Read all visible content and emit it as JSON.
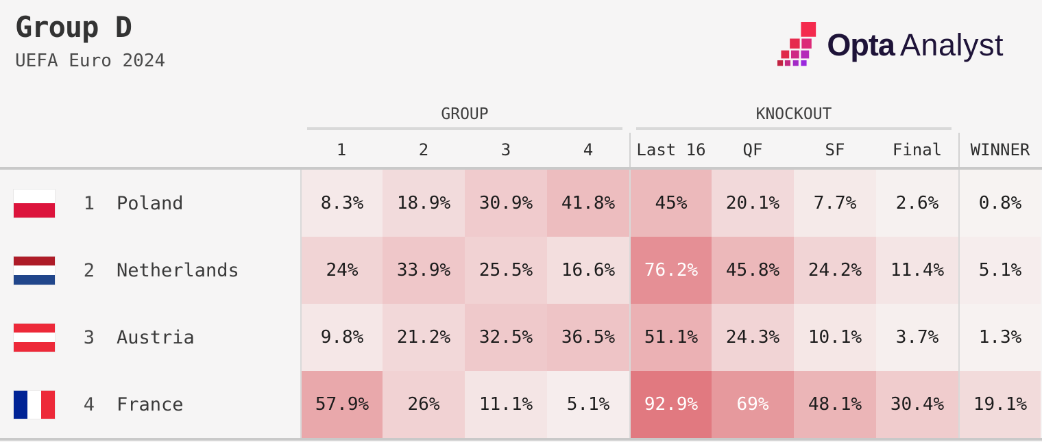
{
  "header": {
    "title": "Group D",
    "subtitle": "UEFA Euro 2024"
  },
  "logo": {
    "brand": "Opta",
    "product": "Analyst",
    "text_color": "#1e1338",
    "mark_colors": [
      "#f42a4d",
      "#e62a4e",
      "#dc2a78",
      "#e02a49",
      "#cf2a84",
      "#b42bb9",
      "#c22342",
      "#c42a80",
      "#a32ac6",
      "#9a28dd"
    ]
  },
  "chart_data": {
    "type": "heatmap",
    "title": "Group D",
    "subtitle": "UEFA Euro 2024",
    "column_sections": [
      {
        "label": "GROUP",
        "columns": [
          "1",
          "2",
          "3",
          "4"
        ]
      },
      {
        "label": "KNOCKOUT",
        "columns": [
          "Last 16",
          "QF",
          "SF",
          "Final"
        ]
      },
      {
        "label": "",
        "columns": [
          "WINNER"
        ]
      }
    ],
    "columns": [
      "1",
      "2",
      "3",
      "4",
      "Last 16",
      "QF",
      "SF",
      "Final",
      "WINNER"
    ],
    "rows": [
      {
        "rank": "1",
        "team": "Poland",
        "flag": "poland",
        "labels": [
          "8.3%",
          "18.9%",
          "30.9%",
          "41.8%",
          "45%",
          "20.1%",
          "7.7%",
          "2.6%",
          "0.8%"
        ],
        "values": [
          8.3,
          18.9,
          30.9,
          41.8,
          45,
          20.1,
          7.7,
          2.6,
          0.8
        ]
      },
      {
        "rank": "2",
        "team": "Netherlands",
        "flag": "netherlands",
        "labels": [
          "24%",
          "33.9%",
          "25.5%",
          "16.6%",
          "76.2%",
          "45.8%",
          "24.2%",
          "11.4%",
          "5.1%"
        ],
        "values": [
          24,
          33.9,
          25.5,
          16.6,
          76.2,
          45.8,
          24.2,
          11.4,
          5.1
        ]
      },
      {
        "rank": "3",
        "team": "Austria",
        "flag": "austria",
        "labels": [
          "9.8%",
          "21.2%",
          "32.5%",
          "36.5%",
          "51.1%",
          "24.3%",
          "10.1%",
          "3.7%",
          "1.3%"
        ],
        "values": [
          9.8,
          21.2,
          32.5,
          36.5,
          51.1,
          24.3,
          10.1,
          3.7,
          1.3
        ]
      },
      {
        "rank": "4",
        "team": "France",
        "flag": "france",
        "labels": [
          "57.9%",
          "26%",
          "11.1%",
          "5.1%",
          "92.9%",
          "69%",
          "48.1%",
          "30.4%",
          "19.1%"
        ],
        "values": [
          57.9,
          26,
          11.1,
          5.1,
          92.9,
          69,
          48.1,
          30.4,
          19.1
        ]
      }
    ],
    "color_scale": {
      "type": "linear",
      "domain": [
        0,
        100
      ],
      "range": [
        "#f7f4f3",
        "#df7077"
      ],
      "white_text_threshold": 65
    },
    "flags": {
      "poland": {
        "orientation": "horizontal",
        "stripes": [
          "#ffffff",
          "#dc143c"
        ]
      },
      "netherlands": {
        "orientation": "horizontal",
        "stripes": [
          "#ae1c28",
          "#ffffff",
          "#21468b"
        ]
      },
      "austria": {
        "orientation": "horizontal",
        "stripes": [
          "#ed2939",
          "#ffffff",
          "#ed2939"
        ]
      },
      "france": {
        "orientation": "vertical",
        "stripes": [
          "#002395",
          "#ffffff",
          "#ed2939"
        ]
      }
    },
    "layout": {
      "grid": false,
      "legend": false
    }
  }
}
